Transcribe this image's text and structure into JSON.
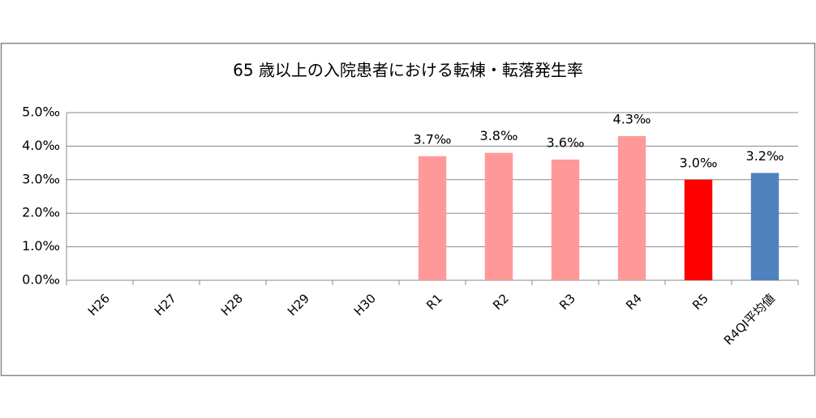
{
  "chart_data": {
    "type": "bar",
    "title": "65 歳以上の入院患者における転棟・転落発生率",
    "categories": [
      "H26",
      "H27",
      "H28",
      "H29",
      "H30",
      "R1",
      "R2",
      "R3",
      "R4",
      "R5",
      "R4QI平均値"
    ],
    "values": [
      null,
      null,
      null,
      null,
      null,
      3.7,
      3.8,
      3.6,
      4.3,
      3.0,
      3.2
    ],
    "value_labels": [
      null,
      null,
      null,
      null,
      null,
      "3.7‰",
      "3.8‰",
      "3.6‰",
      "4.3‰",
      "3.0‰",
      "3.2‰"
    ],
    "colors": [
      "#ff9999",
      "#ff9999",
      "#ff9999",
      "#ff9999",
      "#ff9999",
      "#ff9999",
      "#ff9999",
      "#ff9999",
      "#ff9999",
      "#ff0000",
      "#4f81bd"
    ],
    "ylim": [
      0,
      5
    ],
    "yticks": [
      {
        "value": 0,
        "label": "0.0‰"
      },
      {
        "value": 1,
        "label": "1.0‰"
      },
      {
        "value": 2,
        "label": "2.0‰"
      },
      {
        "value": 3,
        "label": "3.0‰"
      },
      {
        "value": 4,
        "label": "4.0‰"
      },
      {
        "value": 5,
        "label": "5.0‰"
      }
    ],
    "grid": true
  }
}
